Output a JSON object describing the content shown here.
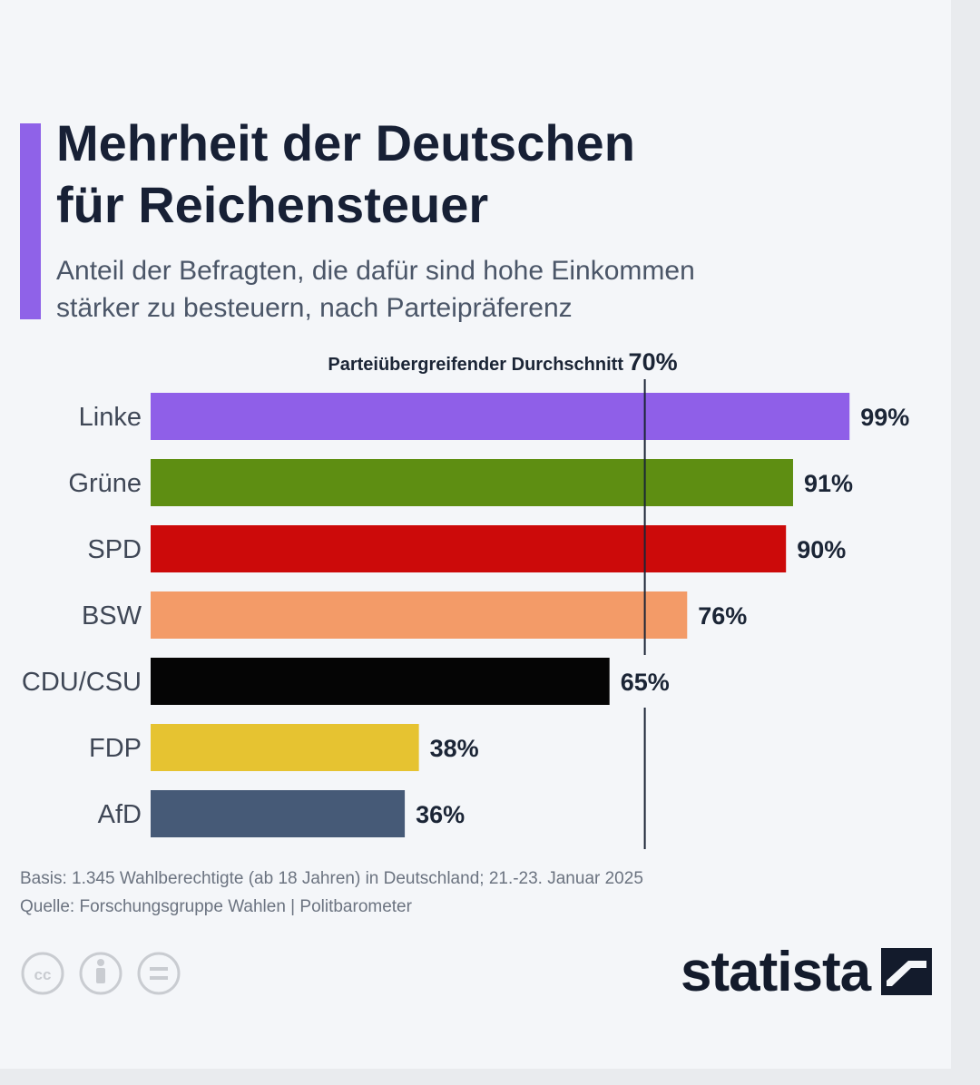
{
  "title_line1": "Mehrheit der Deutschen",
  "title_line2": "für Reichensteuer",
  "subtitle_line1": "Anteil der Befragten, die dafür sind hohe Einkommen",
  "subtitle_line2": "stärker zu besteuern, nach Parteipräferenz",
  "chart_data": {
    "type": "bar",
    "orientation": "horizontal",
    "unit": "%",
    "categories": [
      "Linke",
      "Grüne",
      "SPD",
      "BSW",
      "CDU/CSU",
      "FDP",
      "AfD"
    ],
    "values": [
      99,
      91,
      90,
      76,
      65,
      38,
      36
    ],
    "value_labels": [
      "99%",
      "91%",
      "90%",
      "76%",
      "65%",
      "38%",
      "36%"
    ],
    "colors": [
      "#8f5fe8",
      "#5e8e12",
      "#cc0a0a",
      "#f39b68",
      "#050505",
      "#e6c331",
      "#465a77"
    ],
    "reference_line": {
      "label": "Parteiübergreifender Durchschnitt",
      "value": 70,
      "value_label": "70%"
    },
    "xlim": [
      0,
      100
    ],
    "grid": false,
    "legend": "none"
  },
  "footer": {
    "basis": "Basis: 1.345 Wahlberechtigte (ab 18 Jahren) in Deutschland; 21.-23. Januar 2025",
    "source": "Quelle: Forschungsgruppe Wahlen | Politbarometer"
  },
  "license_icons": [
    "cc-icon",
    "attribution-icon",
    "no-derivatives-icon"
  ],
  "brand": "statista"
}
